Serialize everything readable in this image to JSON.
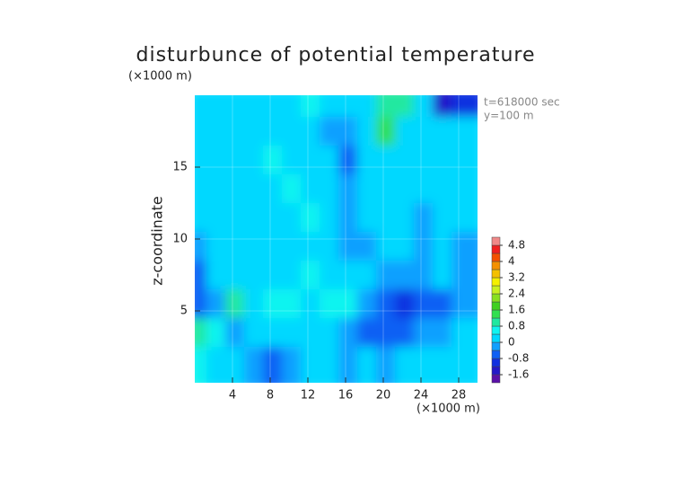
{
  "chart_data": {
    "type": "contour",
    "title": "disturbunce of potential temperature",
    "y_unit_label": "(×1000 m)",
    "x_label": "(×1000 m)",
    "y_label": "z-coordinate",
    "annotations": [
      "t=618000 sec",
      "y=100 m"
    ],
    "x": [
      1,
      3,
      5,
      7,
      9,
      11,
      13,
      15,
      17,
      19,
      21,
      23,
      25,
      27,
      29
    ],
    "y": [
      19,
      17,
      15,
      13,
      11,
      9,
      7,
      5,
      3,
      1
    ],
    "values": [
      [
        0.3,
        0.2,
        0.1,
        0.2,
        0.1,
        0.2,
        0.5,
        0.3,
        0.2,
        0.3,
        1.0,
        0.8,
        0.0,
        -1.4,
        -1.2
      ],
      [
        0.1,
        0.3,
        0.2,
        0.1,
        0.2,
        0.3,
        0.1,
        -0.3,
        -0.2,
        0.2,
        1.2,
        0.2,
        0.1,
        0.0,
        0.2
      ],
      [
        0.0,
        0.2,
        0.3,
        0.1,
        0.4,
        0.3,
        0.2,
        0.0,
        -0.5,
        0.1,
        0.3,
        0.2,
        0.1,
        0.1,
        0.0
      ],
      [
        0.2,
        0.1,
        0.0,
        0.3,
        0.2,
        0.4,
        0.3,
        0.1,
        -0.4,
        0.2,
        0.1,
        0.3,
        0.0,
        0.2,
        0.1
      ],
      [
        0.1,
        0.3,
        0.2,
        0.1,
        0.2,
        0.3,
        0.4,
        0.2,
        -0.3,
        0.3,
        0.2,
        0.1,
        -0.2,
        0.1,
        0.2
      ],
      [
        -0.2,
        0.1,
        0.3,
        0.2,
        0.1,
        0.3,
        0.3,
        0.2,
        -0.2,
        -0.3,
        0.3,
        0.2,
        -0.4,
        0.1,
        -0.2
      ],
      [
        -0.6,
        0.2,
        0.1,
        0.3,
        0.2,
        0.1,
        0.4,
        0.3,
        0.1,
        0.2,
        -0.3,
        -0.2,
        -0.4,
        0.0,
        -0.1
      ],
      [
        -0.7,
        -0.2,
        0.8,
        0.3,
        0.4,
        0.6,
        0.2,
        0.5,
        0.6,
        -0.4,
        -0.8,
        -0.9,
        -0.7,
        -0.5,
        -0.2
      ],
      [
        0.9,
        0.6,
        -0.1,
        0.2,
        0.1,
        0.3,
        0.2,
        0.0,
        -0.2,
        -0.6,
        -0.7,
        -0.6,
        -0.4,
        -0.2,
        0.1
      ],
      [
        0.4,
        0.2,
        0.0,
        -0.1,
        -0.5,
        -0.3,
        0.1,
        0.2,
        -0.3,
        0.0,
        -0.4,
        0.2,
        0.0,
        0.3,
        0.1
      ]
    ],
    "xlim": [
      0,
      30
    ],
    "ylim": [
      0,
      20
    ],
    "xticks": [
      4,
      8,
      12,
      16,
      20,
      24,
      28
    ],
    "yticks": [
      5,
      10,
      15
    ],
    "grid": true,
    "color_levels": [
      -2.0,
      -1.6,
      -1.2,
      -0.8,
      -0.4,
      0,
      0.4,
      0.8,
      1.2,
      1.6,
      2.0,
      2.4,
      2.8,
      3.2,
      3.6,
      4.0,
      4.4,
      4.8,
      5.2
    ],
    "colors": [
      "#5a10a8",
      "#2418c8",
      "#1030e0",
      "#1060f4",
      "#10a0ff",
      "#00d8ff",
      "#10f4f0",
      "#20e8a0",
      "#30e050",
      "#40d020",
      "#88e020",
      "#c8f020",
      "#f4f000",
      "#f4c000",
      "#f49000",
      "#f45000",
      "#f02020",
      "#f08888"
    ],
    "colorbar_ticks": [
      4.8,
      4,
      3.2,
      2.4,
      1.6,
      0.8,
      0,
      -0.8,
      -1.6
    ]
  }
}
